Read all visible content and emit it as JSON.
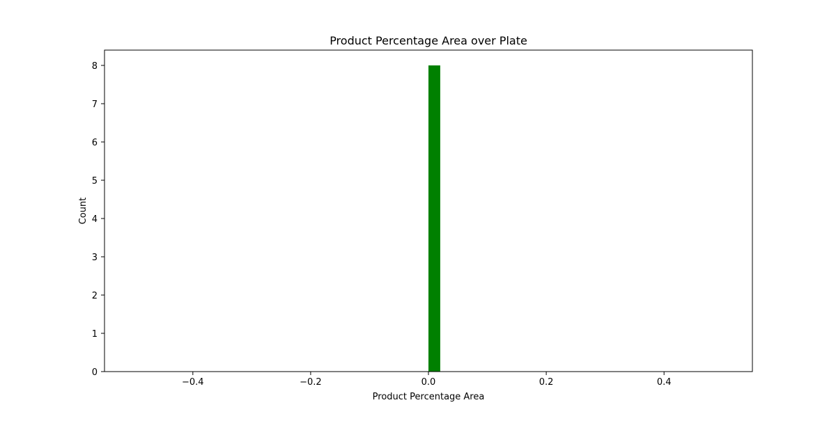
{
  "chart_data": {
    "type": "bar",
    "title": "Product Percentage Area over Plate",
    "xlabel": "Product Percentage Area",
    "ylabel": "Count",
    "xlim": [
      -0.55,
      0.55
    ],
    "ylim": [
      0,
      8.4
    ],
    "x_ticks": [
      -0.4,
      -0.2,
      0.0,
      0.2,
      0.4
    ],
    "x_tick_labels": [
      "−0.4",
      "−0.2",
      "0.0",
      "0.2",
      "0.4"
    ],
    "y_ticks": [
      0,
      1,
      2,
      3,
      4,
      5,
      6,
      7,
      8
    ],
    "y_tick_labels": [
      "0",
      "1",
      "2",
      "3",
      "4",
      "5",
      "6",
      "7",
      "8"
    ],
    "bins": [
      {
        "x_start": 0.0,
        "x_end": 0.02,
        "count": 8
      }
    ],
    "bar_color": "#008000",
    "grid": false,
    "legend": "none"
  }
}
